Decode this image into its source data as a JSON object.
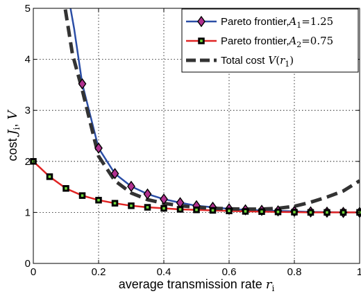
{
  "chart_data": {
    "type": "line",
    "xlabel": "average transmission rate",
    "xlabel_var": "r",
    "xlabel_sub": "i",
    "ylabel": "cost",
    "ylabel_var": "J",
    "ylabel_sub": "i",
    "ylabel_var2": "V",
    "xlim": [
      0,
      1
    ],
    "ylim": [
      0,
      5
    ],
    "xticks": [
      0,
      0.2,
      0.4,
      0.6,
      0.8,
      1
    ],
    "xtick_labels": [
      "0",
      "0.2",
      "0.4",
      "0.6",
      "0.8",
      "1"
    ],
    "yticks": [
      0,
      1,
      2,
      3,
      4,
      5
    ],
    "ytick_labels": [
      "0",
      "1",
      "2",
      "3",
      "4",
      "5"
    ],
    "grid": true,
    "legend_position": "top-right",
    "series": [
      {
        "name": "Pareto frontier, A1=1.25",
        "legend_text": "Pareto frontier,",
        "legend_math_var": "A",
        "legend_math_sub": "1",
        "legend_math_val": "=1.25",
        "color": "#2b4ea6",
        "marker": "diamond",
        "marker_fill": "#b0308f",
        "line_style": "solid",
        "x": [
          0.1,
          0.125,
          0.15,
          0.2,
          0.25,
          0.3,
          0.35,
          0.4,
          0.45,
          0.5,
          0.55,
          0.6,
          0.65,
          0.7,
          0.75,
          0.8,
          0.85,
          0.9,
          0.95,
          1.0
        ],
        "y": [
          5.5,
          4.6,
          3.52,
          2.26,
          1.76,
          1.51,
          1.36,
          1.26,
          1.19,
          1.13,
          1.1,
          1.07,
          1.05,
          1.04,
          1.03,
          1.02,
          1.01,
          1.005,
          1.0,
          1.0
        ],
        "markers_x": [
          0.15,
          0.2,
          0.25,
          0.3,
          0.35,
          0.4,
          0.45,
          0.5,
          0.55,
          0.6,
          0.65,
          0.7,
          0.75,
          0.8,
          0.85,
          0.9,
          0.95,
          1.0
        ]
      },
      {
        "name": "Pareto frontier, A2=0.75",
        "legend_text": "Pareto frontier,",
        "legend_math_var": "A",
        "legend_math_sub": "2",
        "legend_math_val": "=0.75",
        "color": "#e02424",
        "marker": "square",
        "marker_fill": "#6fd83a",
        "line_style": "solid",
        "x": [
          0,
          0.05,
          0.1,
          0.15,
          0.2,
          0.25,
          0.3,
          0.35,
          0.4,
          0.45,
          0.5,
          0.55,
          0.6,
          0.65,
          0.7,
          0.75,
          0.8,
          0.85,
          0.9,
          0.95,
          1.0
        ],
        "y": [
          2.0,
          1.7,
          1.47,
          1.33,
          1.24,
          1.18,
          1.13,
          1.1,
          1.08,
          1.06,
          1.05,
          1.04,
          1.03,
          1.02,
          1.015,
          1.01,
          1.005,
          1.0,
          1.0,
          1.0,
          1.0
        ],
        "markers_x": [
          0,
          0.05,
          0.1,
          0.15,
          0.2,
          0.25,
          0.3,
          0.35,
          0.4,
          0.45,
          0.5,
          0.55,
          0.6,
          0.65,
          0.7,
          0.75,
          0.8,
          0.85,
          0.9,
          0.95,
          1.0
        ]
      },
      {
        "name": "Total cost V(r1)",
        "legend_text": "Total cost",
        "legend_math_var": "V",
        "legend_math_paren_var": "r",
        "legend_math_sub": "1",
        "color": "#333333",
        "marker": "none",
        "line_style": "dashed",
        "x": [
          0.09,
          0.1,
          0.12,
          0.15,
          0.2,
          0.25,
          0.3,
          0.35,
          0.4,
          0.45,
          0.5,
          0.55,
          0.6,
          0.65,
          0.7,
          0.75,
          0.8,
          0.85,
          0.9,
          0.95,
          1.0
        ],
        "y": [
          5.3,
          4.9,
          4.1,
          3.4,
          2.1,
          1.62,
          1.38,
          1.25,
          1.18,
          1.13,
          1.1,
          1.08,
          1.07,
          1.065,
          1.065,
          1.08,
          1.12,
          1.2,
          1.3,
          1.42,
          1.62
        ]
      }
    ]
  }
}
